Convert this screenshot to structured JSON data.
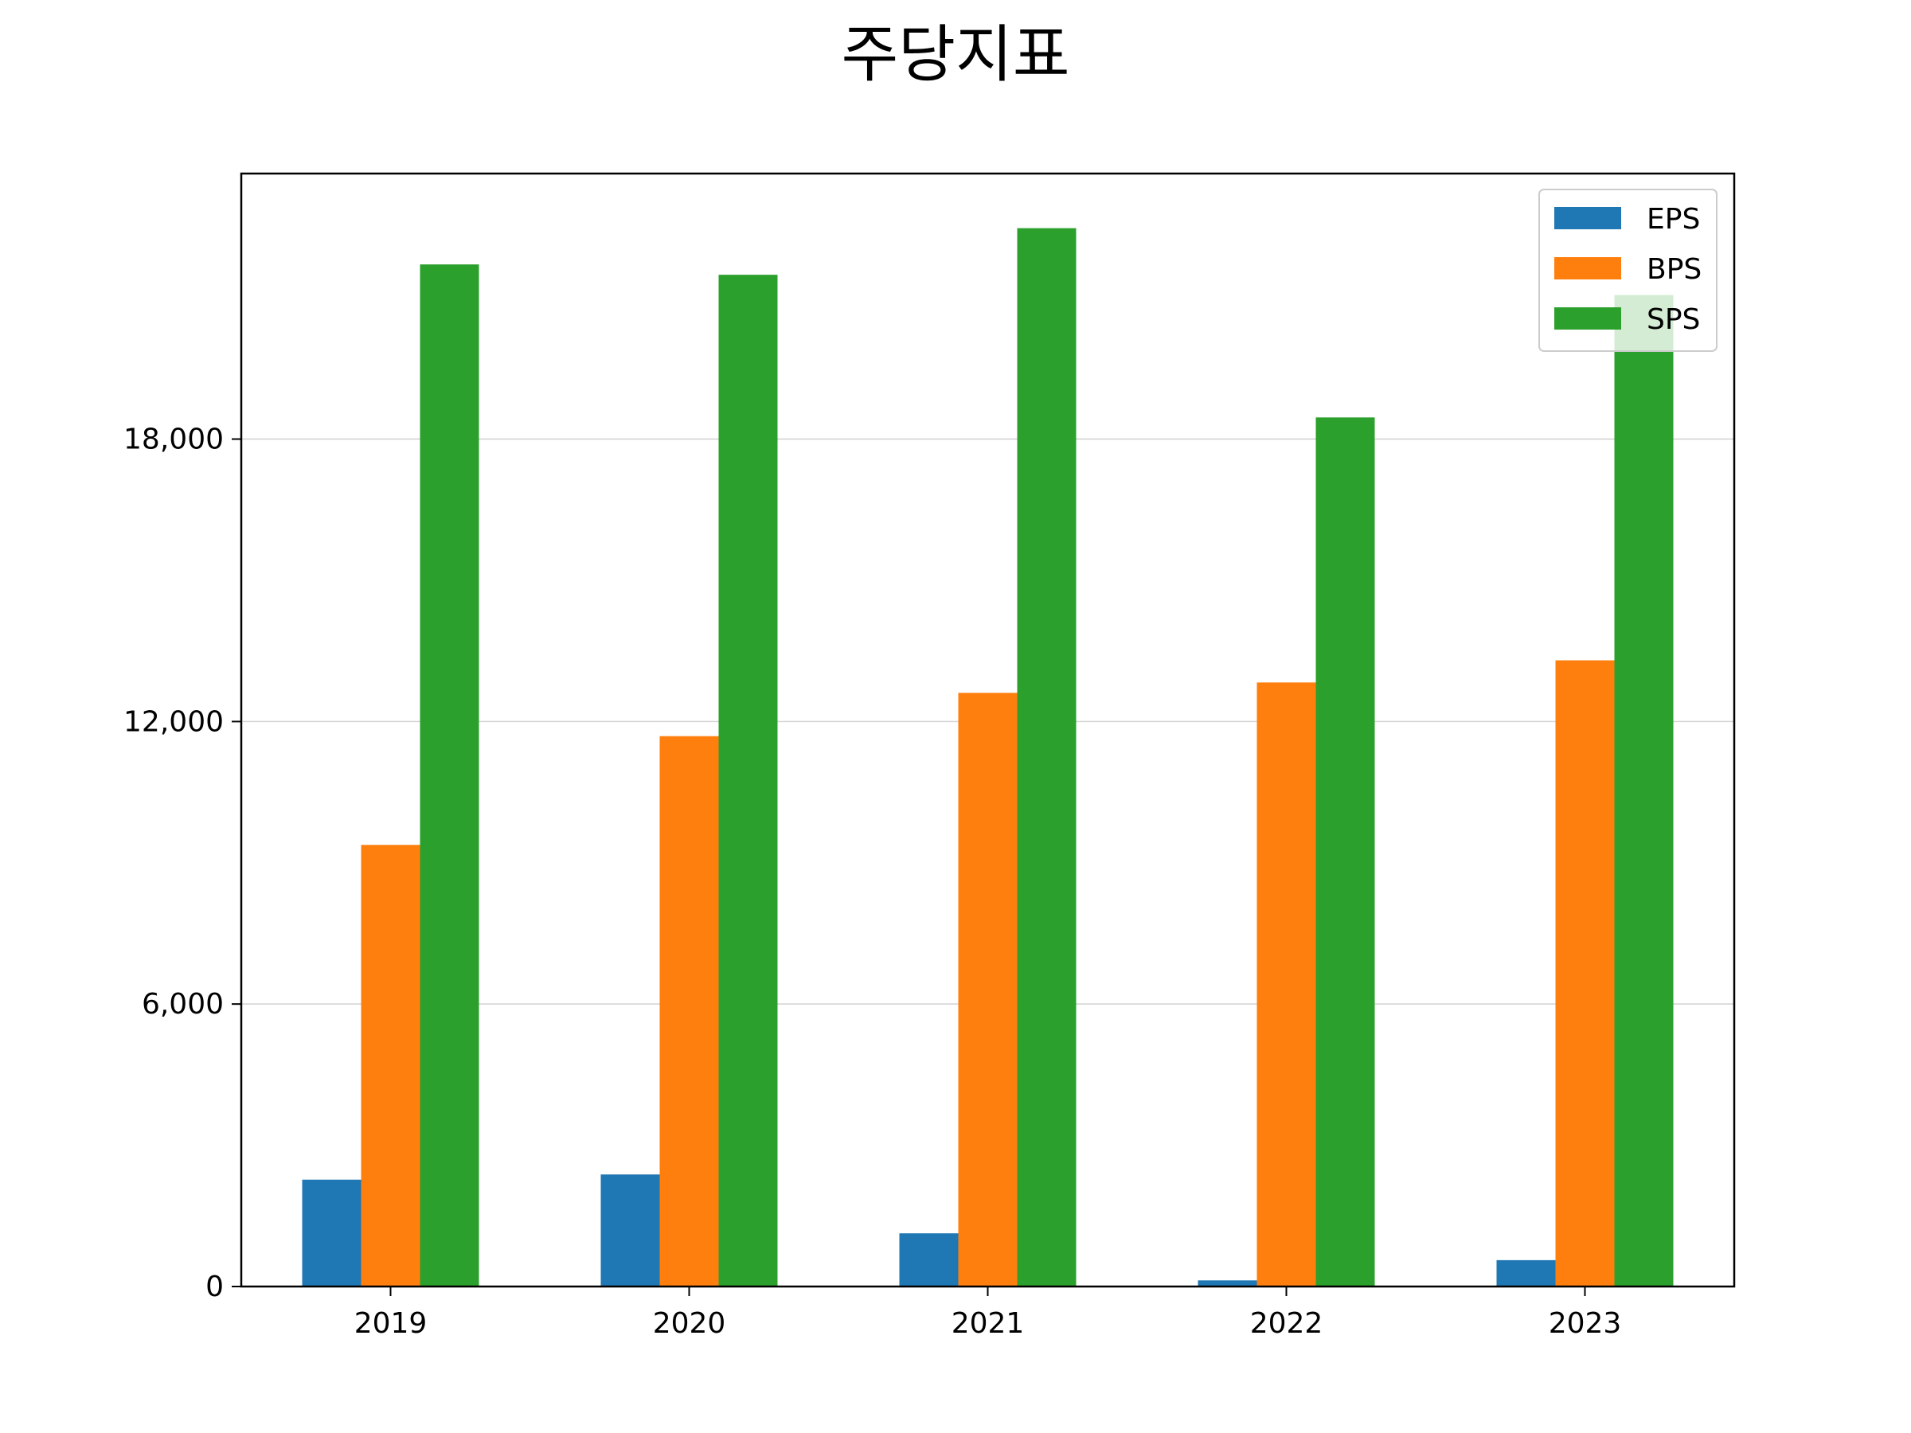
{
  "chart_data": {
    "type": "bar",
    "title": "주당지표",
    "xlabel": "",
    "ylabel": "",
    "categories": [
      "2019",
      "2020",
      "2021",
      "2022",
      "2023"
    ],
    "series": [
      {
        "name": "EPS",
        "color": "#1f77b4",
        "values": [
          2270,
          2380,
          1130,
          130,
          560
        ]
      },
      {
        "name": "BPS",
        "color": "#ff7f0e",
        "values": [
          9380,
          11690,
          12610,
          12830,
          13300
        ]
      },
      {
        "name": "SPS",
        "color": "#2ca02c",
        "values": [
          21710,
          21490,
          22480,
          18460,
          21060
        ]
      }
    ],
    "ylim": [
      0,
      23640
    ],
    "yticks": [
      {
        "value": 0,
        "label": "0"
      },
      {
        "value": 6000,
        "label": "6,000"
      },
      {
        "value": 12000,
        "label": "12,000"
      },
      {
        "value": 18000,
        "label": "18,000"
      }
    ],
    "grid": true,
    "legend_position": "top-right"
  }
}
